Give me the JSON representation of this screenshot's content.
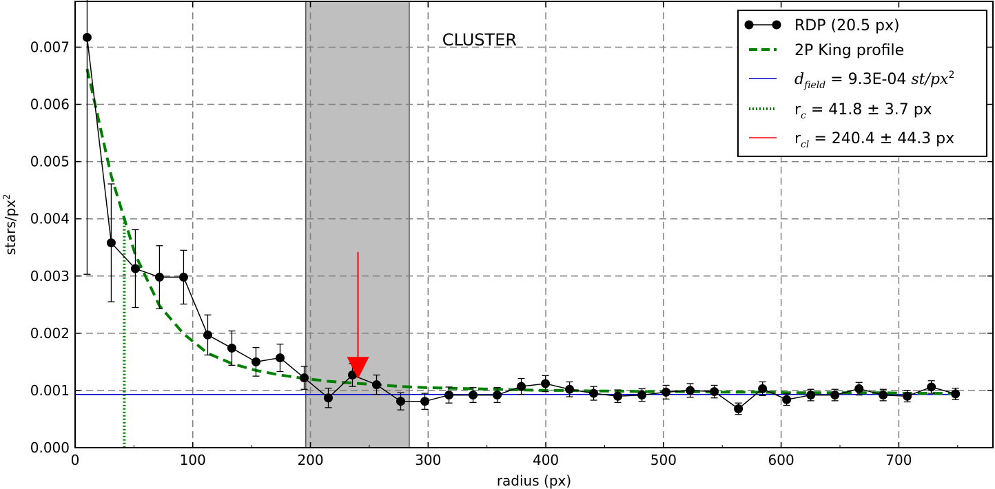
{
  "chart_data": {
    "type": "line",
    "title": "",
    "xlabel": "radius (px)",
    "ylabel": "stars/px",
    "ylabel_sup": "2",
    "xlim": [
      0,
      780
    ],
    "ylim": [
      0,
      0.0078
    ],
    "x_ticks": [
      0,
      100,
      200,
      300,
      400,
      500,
      600,
      700
    ],
    "x_tick_labels": [
      "0",
      "100",
      "200",
      "300",
      "400",
      "500",
      "600",
      "700"
    ],
    "y_ticks": [
      0,
      0.001,
      0.002,
      0.003,
      0.004,
      0.005,
      0.006,
      0.007
    ],
    "y_tick_labels": [
      "0.000",
      "0.001",
      "0.002",
      "0.003",
      "0.004",
      "0.005",
      "0.006",
      "0.007"
    ],
    "grid": true,
    "legend_position": "top-right",
    "annotation": "CLUSTER",
    "shaded_region": [
      196,
      284
    ],
    "arrow": {
      "x": 240.4,
      "y_top": 0.00342,
      "y_tip": 0.0012
    },
    "series": [
      {
        "name": "RDP (20.5 px)",
        "color": "#000000",
        "style": "line-markers-errorbars",
        "x": [
          10.2,
          30.7,
          51.2,
          71.7,
          92.2,
          112.7,
          133.2,
          153.7,
          174.2,
          194.7,
          215.2,
          235.7,
          256.2,
          276.7,
          297.2,
          317.7,
          338.2,
          358.7,
          379.2,
          399.7,
          420.2,
          440.7,
          461.2,
          481.7,
          502.2,
          522.7,
          543.2,
          563.7,
          584.2,
          604.7,
          625.2,
          645.7,
          666.2,
          686.7,
          707.2,
          727.7,
          748.2
        ],
        "y": [
          0.00717,
          0.00358,
          0.00313,
          0.00298,
          0.00298,
          0.00197,
          0.00174,
          0.0015,
          0.00157,
          0.00122,
          0.00087,
          0.00127,
          0.0011,
          0.00081,
          0.00081,
          0.00092,
          0.00092,
          0.00092,
          0.00107,
          0.00112,
          0.00102,
          0.00095,
          0.0009,
          0.00092,
          0.00097,
          0.001,
          0.00098,
          0.00068,
          0.00103,
          0.00084,
          0.00092,
          0.00092,
          0.00103,
          0.00092,
          0.0009,
          0.00106,
          0.00094
        ],
        "yerr": [
          0.00414,
          0.00103,
          0.00068,
          0.00055,
          0.00047,
          0.00035,
          0.0003,
          0.00025,
          0.00024,
          0.0002,
          0.00017,
          0.0002,
          0.00017,
          0.00015,
          0.00014,
          0.00014,
          0.00013,
          0.00013,
          0.00014,
          0.00014,
          0.00013,
          0.00012,
          0.00011,
          0.00011,
          0.00012,
          0.00012,
          0.00011,
          0.0001,
          0.00012,
          0.0001,
          0.0001,
          0.0001,
          0.00011,
          0.0001,
          0.0001,
          0.00011,
          0.0001
        ]
      },
      {
        "name": "2P King profile",
        "color": "#007f00",
        "style": "dashed",
        "x": [
          10.2,
          30.7,
          51.2,
          71.7,
          92.2,
          112.7,
          133.2,
          153.7,
          174.2,
          194.7,
          215.2,
          235.7,
          256.2,
          276.7,
          297.2,
          317.7,
          338.2,
          358.7,
          379.2,
          399.7,
          420.2,
          440.7,
          461.2,
          481.7,
          502.2,
          522.7,
          543.2,
          563.7,
          584.2,
          604.7,
          625.2,
          645.7,
          666.2,
          686.7,
          707.2,
          727.7,
          748.2
        ],
        "y": [
          0.00662,
          0.00475,
          0.00337,
          0.00248,
          0.00199,
          0.00165,
          0.00147,
          0.00135,
          0.00127,
          0.00121,
          0.00116,
          0.00113,
          0.0011,
          0.00107,
          0.00105,
          0.00104,
          0.00103,
          0.00102,
          0.00101,
          0.001,
          0.001,
          0.00099,
          0.00099,
          0.00098,
          0.00098,
          0.00098,
          0.00097,
          0.00097,
          0.00097,
          0.00096,
          0.00096,
          0.00096,
          0.00096,
          0.00096,
          0.00095,
          0.00095,
          0.00095
        ]
      }
    ],
    "lines": {
      "field": {
        "value": 0.00093,
        "color": "#0000cc"
      },
      "r_c": {
        "value": 41.8,
        "y_top": 0.004,
        "color": "#007f00"
      },
      "r_cl": {
        "value": 240.4,
        "color": "#ff0000"
      }
    },
    "legend": [
      {
        "parts": [
          "RDP (20.5 px)"
        ]
      },
      {
        "parts": [
          "2P King profile"
        ]
      },
      {
        "prefix_math": "d",
        "prefix_sub": "field",
        "mid": " = 9.3E-04 ",
        "suffix_math": "st/px",
        "suffix_sup": "2"
      },
      {
        "prefix": "r",
        "prefix_sub": "c",
        "mid": " = 41.8 ± 3.7 px"
      },
      {
        "prefix": "r",
        "prefix_sub": "cl",
        "mid": " = 240.4 ± 44.3 px"
      }
    ]
  }
}
